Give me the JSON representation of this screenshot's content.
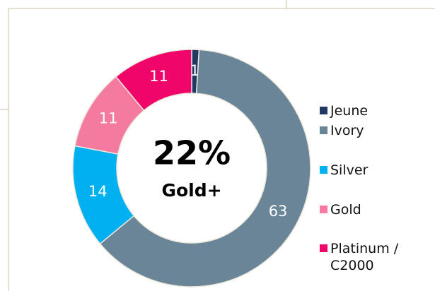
{
  "chart_data": {
    "type": "donut",
    "categories": [
      "Jeune",
      "Ivory",
      "Silver",
      "Gold",
      "Platinum / C2000"
    ],
    "values": [
      1,
      63,
      14,
      11,
      11
    ],
    "colors": [
      "#1f3864",
      "#6a8597",
      "#00b0f0",
      "#f47aa0",
      "#f0066a"
    ],
    "center_title": "22%",
    "center_subtitle": "Gold+",
    "legend": "right"
  }
}
